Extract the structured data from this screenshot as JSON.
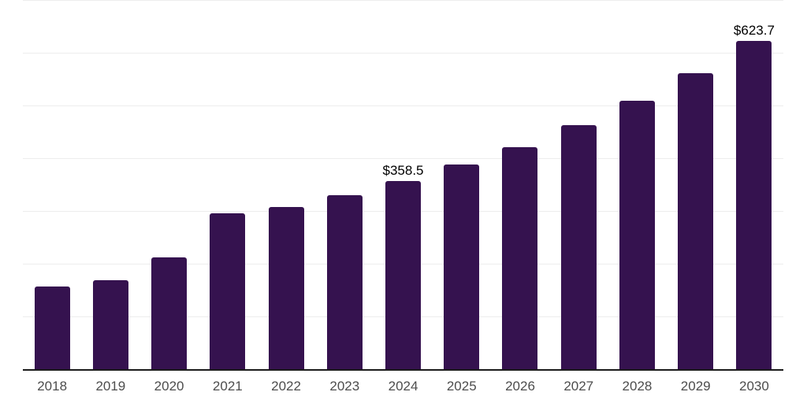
{
  "chart": {
    "background": "#FFFFFF"
  },
  "chart_data": {
    "type": "bar",
    "title": "",
    "categories": [
      "2018",
      "2019",
      "2020",
      "2021",
      "2022",
      "2023",
      "2024",
      "2025",
      "2026",
      "2027",
      "2028",
      "2029",
      "2030"
    ],
    "values": [
      158,
      170,
      213,
      297,
      309,
      331,
      358.5,
      390,
      423,
      464,
      510,
      562,
      623.7
    ],
    "data_labels": [
      "",
      "",
      "",
      "",
      "",
      "",
      "$358.5",
      "",
      "",
      "",
      "",
      "",
      "$623.7"
    ],
    "xlabel": "",
    "ylabel": "",
    "ylim": [
      0,
      700
    ],
    "gridline_step": 100,
    "grid": true,
    "legend": false,
    "y_tick_labels_visible": false,
    "colors": {
      "bar": "#35124F",
      "gridline": "#EDEDED",
      "axis_line": "#1B1B1B",
      "tick_label": "#4D4D4D",
      "data_label": "#000000"
    }
  }
}
